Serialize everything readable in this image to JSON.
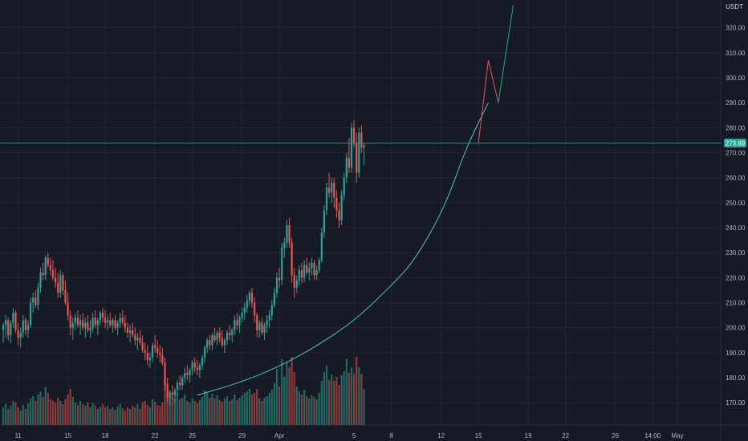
{
  "colors": {
    "background": "#161a25",
    "grid": "#232733",
    "up": "#26a69a",
    "down": "#ef5350",
    "volume_up": "#1e7a70",
    "volume_down": "#a63f3d",
    "curve": "#4fc3c7",
    "price_line": "#26a69a",
    "projection_up": "#26a69a",
    "projection_down": "#ef5350",
    "axis_text": "#b2b5be"
  },
  "chart_data": {
    "type": "candlestick",
    "currency": "USDT",
    "current_price": 273.89,
    "current_price_label": "273.89",
    "ylim": [
      165,
      329
    ],
    "y_ticks": [
      "320.00",
      "310.00",
      "300.00",
      "290.00",
      "280.00",
      "270.00",
      "260.00",
      "250.00",
      "240.00",
      "230.00",
      "220.00",
      "210.00",
      "200.00",
      "190.00",
      "180.00",
      "170.00"
    ],
    "x_ticks": [
      {
        "label": "11",
        "i": 6
      },
      {
        "label": "15",
        "i": 26
      },
      {
        "label": "18",
        "i": 41
      },
      {
        "label": "22",
        "i": 61
      },
      {
        "label": "25",
        "i": 76
      },
      {
        "label": "29",
        "i": 96
      },
      {
        "label": "Apr",
        "i": 111
      },
      {
        "label": "5",
        "i": 141
      },
      {
        "label": "8",
        "i": 156
      },
      {
        "label": "12",
        "i": 176
      },
      {
        "label": "15",
        "i": 191
      },
      {
        "label": "19",
        "i": 211
      },
      {
        "label": "22",
        "i": 226
      },
      {
        "label": "26",
        "i": 246
      },
      {
        "label": "14:00",
        "i": 261
      },
      {
        "label": "May",
        "i": 271
      }
    ],
    "curve_points": [
      [
        78,
        173
      ],
      [
        95,
        178
      ],
      [
        110,
        184
      ],
      [
        125,
        192
      ],
      [
        140,
        202
      ],
      [
        150,
        211
      ],
      [
        160,
        221
      ],
      [
        165,
        227
      ],
      [
        170,
        235
      ],
      [
        175,
        244
      ],
      [
        180,
        255
      ],
      [
        185,
        269
      ],
      [
        190,
        280
      ],
      [
        195,
        290
      ]
    ],
    "projection_down": [
      [
        191,
        274
      ],
      [
        195,
        307
      ],
      [
        199,
        290
      ]
    ],
    "projection_up": [
      [
        199,
        290
      ],
      [
        205,
        329
      ]
    ],
    "ohlc": [
      [
        199,
        202,
        194,
        201
      ],
      [
        201,
        205,
        196,
        203
      ],
      [
        203,
        204,
        195,
        197
      ],
      [
        197,
        203,
        194,
        202
      ],
      [
        202,
        208,
        200,
        206
      ],
      [
        206,
        207,
        198,
        199
      ],
      [
        199,
        202,
        193,
        196
      ],
      [
        196,
        200,
        192,
        198
      ],
      [
        198,
        205,
        196,
        203
      ],
      [
        203,
        204,
        197,
        199
      ],
      [
        199,
        203,
        196,
        201
      ],
      [
        201,
        212,
        200,
        210
      ],
      [
        210,
        214,
        206,
        212
      ],
      [
        212,
        215,
        208,
        209
      ],
      [
        209,
        218,
        207,
        216
      ],
      [
        216,
        224,
        214,
        222
      ],
      [
        222,
        226,
        219,
        221
      ],
      [
        221,
        229,
        219,
        228
      ],
      [
        228,
        230,
        224,
        225
      ],
      [
        225,
        228,
        221,
        223
      ],
      [
        223,
        227,
        219,
        220
      ],
      [
        220,
        224,
        216,
        218
      ],
      [
        218,
        222,
        212,
        214
      ],
      [
        214,
        223,
        212,
        221
      ],
      [
        221,
        222,
        213,
        215
      ],
      [
        215,
        219,
        209,
        210
      ],
      [
        210,
        214,
        203,
        205
      ],
      [
        205,
        207,
        197,
        200
      ],
      [
        200,
        204,
        195,
        202
      ],
      [
        202,
        206,
        199,
        204
      ],
      [
        204,
        207,
        200,
        201
      ],
      [
        201,
        205,
        197,
        203
      ],
      [
        203,
        206,
        199,
        200
      ],
      [
        200,
        204,
        196,
        202
      ],
      [
        202,
        205,
        198,
        199
      ],
      [
        199,
        203,
        196,
        200
      ],
      [
        200,
        206,
        198,
        204
      ],
      [
        204,
        207,
        200,
        201
      ],
      [
        201,
        204,
        197,
        203
      ],
      [
        203,
        207,
        201,
        206
      ],
      [
        206,
        208,
        202,
        204
      ],
      [
        204,
        207,
        200,
        202
      ],
      [
        202,
        205,
        199,
        203
      ],
      [
        203,
        206,
        200,
        201
      ],
      [
        201,
        204,
        198,
        203
      ],
      [
        203,
        205,
        199,
        200
      ],
      [
        200,
        203,
        197,
        202
      ],
      [
        202,
        206,
        200,
        204
      ],
      [
        204,
        207,
        201,
        202
      ],
      [
        202,
        205,
        198,
        200
      ],
      [
        200,
        202,
        196,
        198
      ],
      [
        198,
        201,
        194,
        199
      ],
      [
        199,
        202,
        196,
        197
      ],
      [
        197,
        200,
        193,
        195
      ],
      [
        195,
        198,
        191,
        196
      ],
      [
        196,
        199,
        193,
        194
      ],
      [
        194,
        197,
        190,
        191
      ],
      [
        191,
        194,
        187,
        190
      ],
      [
        190,
        193,
        185,
        187
      ],
      [
        187,
        190,
        184,
        188
      ],
      [
        188,
        194,
        186,
        193
      ],
      [
        193,
        197,
        190,
        192
      ],
      [
        192,
        195,
        188,
        190
      ],
      [
        190,
        193,
        186,
        189
      ],
      [
        189,
        192,
        185,
        186
      ],
      [
        186,
        188,
        175,
        177
      ],
      [
        177,
        180,
        170,
        172
      ],
      [
        172,
        175,
        169,
        174
      ],
      [
        174,
        177,
        171,
        173
      ],
      [
        173,
        176,
        170,
        175
      ],
      [
        175,
        179,
        173,
        178
      ],
      [
        178,
        181,
        175,
        177
      ],
      [
        177,
        181,
        175,
        180
      ],
      [
        180,
        184,
        178,
        182
      ],
      [
        182,
        185,
        179,
        181
      ],
      [
        181,
        184,
        178,
        183
      ],
      [
        183,
        187,
        181,
        186
      ],
      [
        186,
        188,
        182,
        184
      ],
      [
        184,
        187,
        181,
        183
      ],
      [
        183,
        186,
        180,
        185
      ],
      [
        185,
        189,
        183,
        188
      ],
      [
        188,
        193,
        186,
        192
      ],
      [
        192,
        196,
        190,
        195
      ],
      [
        195,
        197,
        191,
        193
      ],
      [
        193,
        198,
        191,
        197
      ],
      [
        197,
        200,
        194,
        195
      ],
      [
        195,
        199,
        193,
        198
      ],
      [
        198,
        200,
        194,
        196
      ],
      [
        196,
        199,
        192,
        193
      ],
      [
        193,
        196,
        190,
        195
      ],
      [
        195,
        199,
        193,
        198
      ],
      [
        198,
        201,
        195,
        197
      ],
      [
        197,
        200,
        194,
        199
      ],
      [
        199,
        205,
        197,
        203
      ],
      [
        203,
        206,
        199,
        201
      ],
      [
        201,
        205,
        198,
        204
      ],
      [
        204,
        208,
        202,
        206
      ],
      [
        206,
        210,
        203,
        208
      ],
      [
        208,
        213,
        206,
        211
      ],
      [
        211,
        215,
        209,
        214
      ],
      [
        214,
        216,
        208,
        210
      ],
      [
        210,
        212,
        202,
        205
      ],
      [
        205,
        206,
        196,
        199
      ],
      [
        199,
        203,
        196,
        202
      ],
      [
        202,
        204,
        197,
        198
      ],
      [
        198,
        202,
        195,
        201
      ],
      [
        201,
        205,
        198,
        203
      ],
      [
        203,
        207,
        200,
        205
      ],
      [
        205,
        211,
        203,
        209
      ],
      [
        209,
        216,
        208,
        214
      ],
      [
        214,
        222,
        212,
        220
      ],
      [
        220,
        224,
        216,
        219
      ],
      [
        219,
        234,
        217,
        232
      ],
      [
        232,
        236,
        228,
        234
      ],
      [
        234,
        243,
        232,
        241
      ],
      [
        241,
        244,
        232,
        234
      ],
      [
        234,
        236,
        218,
        221
      ],
      [
        221,
        224,
        212,
        216
      ],
      [
        216,
        221,
        214,
        219
      ],
      [
        219,
        225,
        217,
        223
      ],
      [
        223,
        226,
        218,
        220
      ],
      [
        220,
        227,
        218,
        225
      ],
      [
        225,
        228,
        221,
        222
      ],
      [
        222,
        226,
        219,
        224
      ],
      [
        224,
        228,
        221,
        226
      ],
      [
        226,
        227,
        219,
        221
      ],
      [
        221,
        225,
        219,
        223
      ],
      [
        223,
        228,
        222,
        227
      ],
      [
        227,
        240,
        226,
        238
      ],
      [
        238,
        249,
        236,
        247
      ],
      [
        247,
        258,
        245,
        256
      ],
      [
        256,
        262,
        252,
        254
      ],
      [
        254,
        260,
        250,
        258
      ],
      [
        258,
        260,
        248,
        252
      ],
      [
        252,
        255,
        244,
        247
      ],
      [
        247,
        250,
        240,
        243
      ],
      [
        243,
        255,
        241,
        253
      ],
      [
        253,
        262,
        251,
        260
      ],
      [
        260,
        270,
        258,
        268
      ],
      [
        268,
        276,
        262,
        264
      ],
      [
        264,
        282,
        262,
        280
      ],
      [
        280,
        283,
        272,
        274
      ],
      [
        274,
        278,
        258,
        262
      ],
      [
        262,
        280,
        260,
        278
      ],
      [
        278,
        281,
        270,
        272
      ],
      [
        272,
        274,
        265,
        273
      ]
    ],
    "volume": [
      0.22,
      0.26,
      0.2,
      0.24,
      0.3,
      0.28,
      0.22,
      0.18,
      0.25,
      0.2,
      0.27,
      0.33,
      0.36,
      0.3,
      0.38,
      0.42,
      0.35,
      0.47,
      0.4,
      0.32,
      0.3,
      0.28,
      0.34,
      0.3,
      0.26,
      0.32,
      0.38,
      0.45,
      0.35,
      0.28,
      0.25,
      0.3,
      0.26,
      0.24,
      0.28,
      0.22,
      0.27,
      0.24,
      0.2,
      0.23,
      0.26,
      0.22,
      0.24,
      0.2,
      0.22,
      0.19,
      0.23,
      0.26,
      0.21,
      0.18,
      0.22,
      0.2,
      0.24,
      0.22,
      0.26,
      0.2,
      0.28,
      0.3,
      0.25,
      0.22,
      0.32,
      0.29,
      0.25,
      0.24,
      0.28,
      0.62,
      0.52,
      0.42,
      0.36,
      0.33,
      0.4,
      0.32,
      0.34,
      0.38,
      0.3,
      0.28,
      0.33,
      0.3,
      0.27,
      0.31,
      0.35,
      0.43,
      0.4,
      0.34,
      0.39,
      0.33,
      0.37,
      0.31,
      0.29,
      0.33,
      0.36,
      0.3,
      0.32,
      0.38,
      0.31,
      0.34,
      0.37,
      0.4,
      0.42,
      0.45,
      0.38,
      0.4,
      0.45,
      0.33,
      0.3,
      0.34,
      0.36,
      0.4,
      0.44,
      0.52,
      0.7,
      0.48,
      0.82,
      0.6,
      0.78,
      0.72,
      0.85,
      0.66,
      0.48,
      0.42,
      0.38,
      0.44,
      0.36,
      0.33,
      0.37,
      0.35,
      0.32,
      0.4,
      0.55,
      0.66,
      0.74,
      0.56,
      0.63,
      0.55,
      0.6,
      0.5,
      0.62,
      0.67,
      0.82,
      0.65,
      0.72,
      0.64,
      0.85,
      0.72,
      0.64,
      0.45
    ]
  }
}
